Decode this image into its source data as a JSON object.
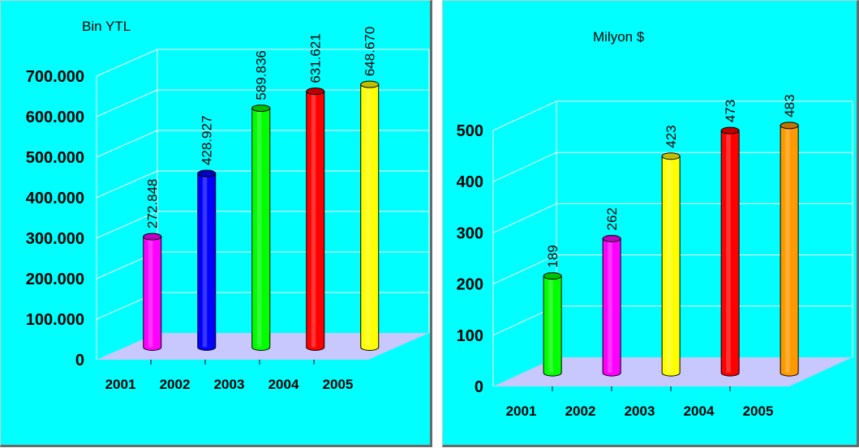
{
  "chart_data": [
    {
      "type": "bar",
      "title": "Bin YTL",
      "categories": [
        "2001",
        "2002",
        "2003",
        "2004",
        "2005"
      ],
      "values": [
        272848,
        428927,
        589836,
        631621,
        648670
      ],
      "value_labels": [
        "272.848",
        "428.927",
        "589.836",
        "631.621",
        "648.670"
      ],
      "colors": [
        "#ff00ff",
        "#0000ff",
        "#00ff00",
        "#ff0000",
        "#ffff00"
      ],
      "yticks": [
        "0",
        "100.000",
        "200.000",
        "300.000",
        "400.000",
        "500.000",
        "600.000",
        "700.000"
      ],
      "ylim": [
        0,
        700000
      ],
      "grid": true,
      "background": "#00ffff",
      "floor_color": "#c8c8ff"
    },
    {
      "type": "bar",
      "title": "Milyon $",
      "categories": [
        "2001",
        "2002",
        "2003",
        "2004",
        "2005"
      ],
      "values": [
        189,
        262,
        423,
        473,
        483
      ],
      "value_labels": [
        "189",
        "262",
        "423",
        "473",
        "483"
      ],
      "colors": [
        "#00ff00",
        "#ff00ff",
        "#ffff00",
        "#ff0000",
        "#ff9900"
      ],
      "yticks": [
        "0",
        "100",
        "200",
        "300",
        "400",
        "500"
      ],
      "ylim": [
        0,
        500
      ],
      "grid": true,
      "background": "#00ffff",
      "floor_color": "#c8c8ff"
    }
  ]
}
